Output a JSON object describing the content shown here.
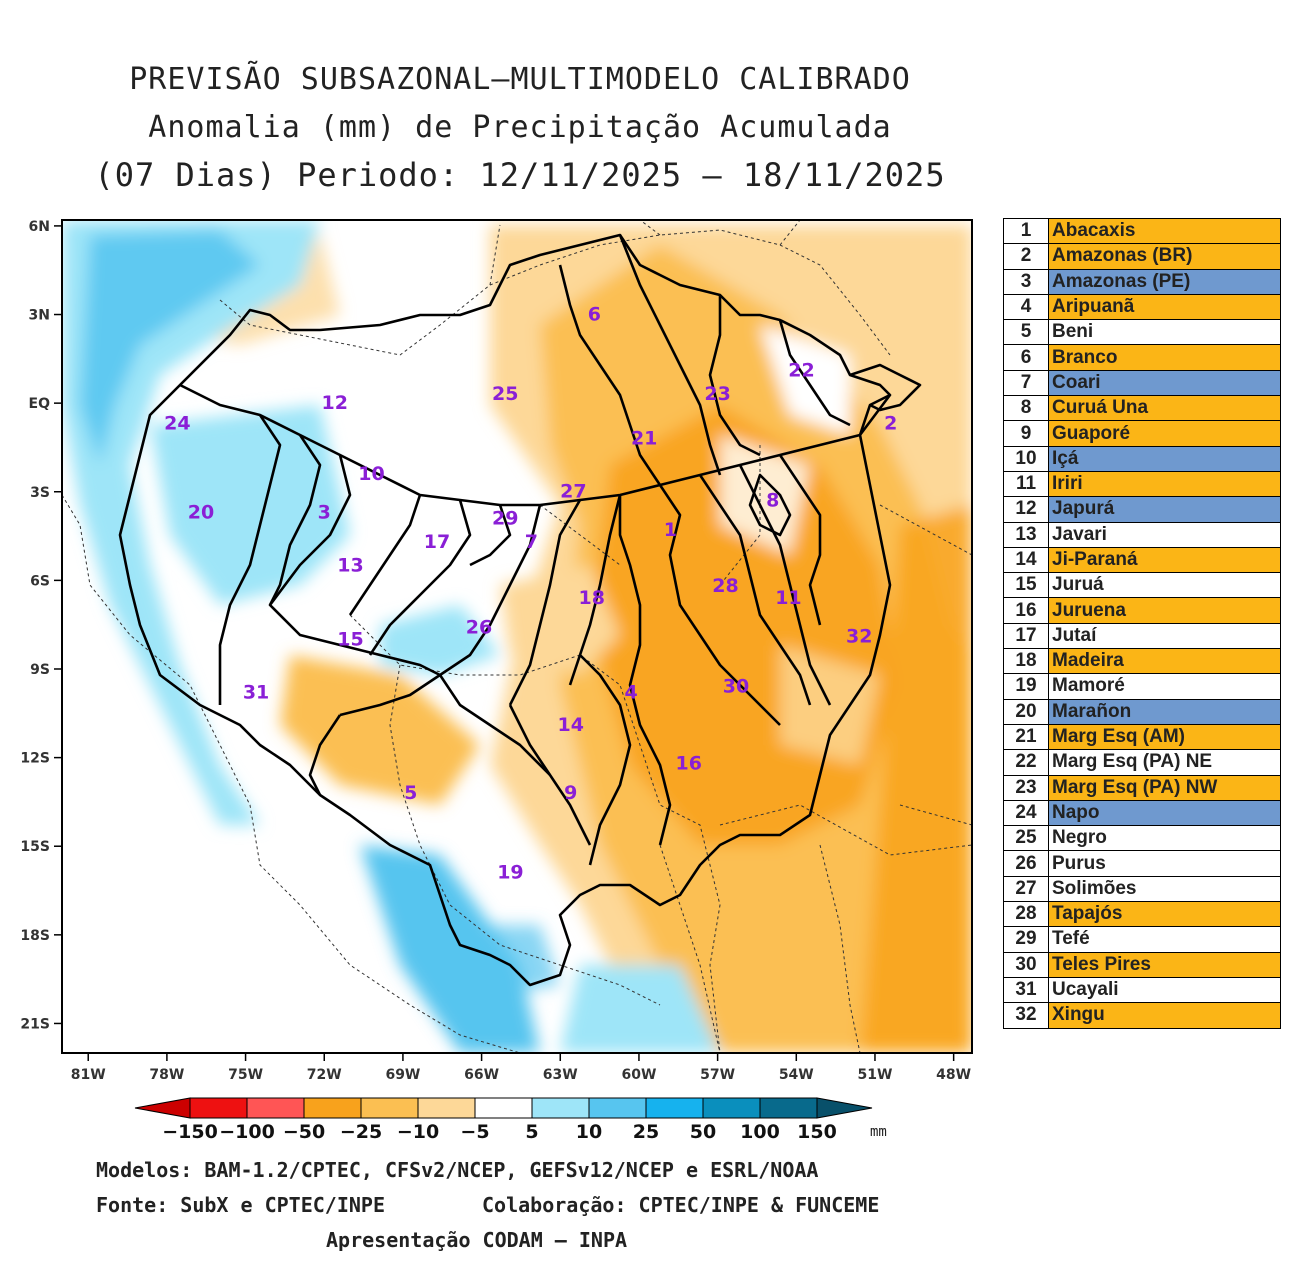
{
  "title": {
    "line1": "PREVISÃO SUBSAZONAL—MULTIMODELO CALIBRADO",
    "line2": "Anomalia (mm) de Precipitação Acumulada",
    "line3": "(07 Dias) Periodo: 12/11/2025 — 18/11/2025"
  },
  "map": {
    "lat_labels": [
      "6N",
      "3N",
      "EQ",
      "3S",
      "6S",
      "9S",
      "12S",
      "15S",
      "18S",
      "21S"
    ],
    "lon_labels": [
      "81W",
      "78W",
      "75W",
      "72W",
      "69W",
      "66W",
      "63W",
      "60W",
      "57W",
      "54W",
      "51W",
      "48W"
    ],
    "lat_values": [
      6,
      3,
      0,
      -3,
      -6,
      -9,
      -12,
      -15,
      -18,
      -21
    ],
    "lon_values": [
      -81,
      -78,
      -75,
      -72,
      -69,
      -66,
      -63,
      -60,
      -57,
      -54,
      -51,
      -48
    ],
    "extent": {
      "lon_min": -82,
      "lon_max": -47.3,
      "lat_min": -22,
      "lat_max": 6.2
    },
    "basin_labels": [
      {
        "id": "1",
        "lon": -58.8,
        "lat": -4.5
      },
      {
        "id": "2",
        "lon": -50.4,
        "lat": -0.9
      },
      {
        "id": "3",
        "lon": -72.0,
        "lat": -3.9
      },
      {
        "id": "4",
        "lon": -60.3,
        "lat": -10.0
      },
      {
        "id": "5",
        "lon": -68.7,
        "lat": -13.4
      },
      {
        "id": "6",
        "lon": -61.7,
        "lat": 2.8
      },
      {
        "id": "7",
        "lon": -64.1,
        "lat": -4.9
      },
      {
        "id": "8",
        "lon": -54.9,
        "lat": -3.5
      },
      {
        "id": "9",
        "lon": -62.6,
        "lat": -13.4
      },
      {
        "id": "10",
        "lon": -70.2,
        "lat": -2.6
      },
      {
        "id": "11",
        "lon": -54.3,
        "lat": -6.8
      },
      {
        "id": "12",
        "lon": -71.6,
        "lat": -0.2
      },
      {
        "id": "13",
        "lon": -71.0,
        "lat": -5.7
      },
      {
        "id": "14",
        "lon": -62.6,
        "lat": -11.1
      },
      {
        "id": "15",
        "lon": -71.0,
        "lat": -8.2
      },
      {
        "id": "16",
        "lon": -58.1,
        "lat": -12.4
      },
      {
        "id": "17",
        "lon": -67.7,
        "lat": -4.9
      },
      {
        "id": "18",
        "lon": -61.8,
        "lat": -6.8
      },
      {
        "id": "19",
        "lon": -64.9,
        "lat": -16.1
      },
      {
        "id": "20",
        "lon": -76.7,
        "lat": -3.9
      },
      {
        "id": "21",
        "lon": -59.8,
        "lat": -1.4
      },
      {
        "id": "22",
        "lon": -53.8,
        "lat": 0.9
      },
      {
        "id": "23",
        "lon": -57.0,
        "lat": 0.1
      },
      {
        "id": "24",
        "lon": -77.6,
        "lat": -0.9
      },
      {
        "id": "25",
        "lon": -65.1,
        "lat": 0.1
      },
      {
        "id": "26",
        "lon": -66.1,
        "lat": -7.8
      },
      {
        "id": "27",
        "lon": -62.5,
        "lat": -3.2
      },
      {
        "id": "28",
        "lon": -56.7,
        "lat": -6.4
      },
      {
        "id": "29",
        "lon": -65.1,
        "lat": -4.1
      },
      {
        "id": "30",
        "lon": -56.3,
        "lat": -9.8
      },
      {
        "id": "31",
        "lon": -74.6,
        "lat": -10.0
      },
      {
        "id": "32",
        "lon": -51.6,
        "lat": -8.1
      }
    ]
  },
  "legend": [
    {
      "num": "1",
      "name": "Abacaxis",
      "color": "#fbb516"
    },
    {
      "num": "2",
      "name": "Amazonas (BR)",
      "color": "#fbb516"
    },
    {
      "num": "3",
      "name": "Amazonas (PE)",
      "color": "#6f99cf"
    },
    {
      "num": "4",
      "name": "Aripuanã",
      "color": "#fbb516"
    },
    {
      "num": "5",
      "name": "Beni",
      "color": "#ffffff"
    },
    {
      "num": "6",
      "name": "Branco",
      "color": "#fbb516"
    },
    {
      "num": "7",
      "name": "Coari",
      "color": "#6f99cf"
    },
    {
      "num": "8",
      "name": "Curuá Una",
      "color": "#fbb516"
    },
    {
      "num": "9",
      "name": "Guaporé",
      "color": "#fbb516"
    },
    {
      "num": "10",
      "name": "Içá",
      "color": "#6f99cf"
    },
    {
      "num": "11",
      "name": "Iriri",
      "color": "#fbb516"
    },
    {
      "num": "12",
      "name": "Japurá",
      "color": "#6f99cf"
    },
    {
      "num": "13",
      "name": "Javari",
      "color": "#ffffff"
    },
    {
      "num": "14",
      "name": "Ji-Paraná",
      "color": "#fbb516"
    },
    {
      "num": "15",
      "name": "Juruá",
      "color": "#ffffff"
    },
    {
      "num": "16",
      "name": "Juruena",
      "color": "#fbb516"
    },
    {
      "num": "17",
      "name": "Jutaí",
      "color": "#ffffff"
    },
    {
      "num": "18",
      "name": "Madeira",
      "color": "#fbb516"
    },
    {
      "num": "19",
      "name": "Mamoré",
      "color": "#ffffff"
    },
    {
      "num": "20",
      "name": "Marañon",
      "color": "#6f99cf"
    },
    {
      "num": "21",
      "name": "Marg Esq (AM)",
      "color": "#fbb516"
    },
    {
      "num": "22",
      "name": "Marg Esq (PA) NE",
      "color": "#ffffff"
    },
    {
      "num": "23",
      "name": "Marg Esq (PA) NW",
      "color": "#fbb516"
    },
    {
      "num": "24",
      "name": "Napo",
      "color": "#6f99cf"
    },
    {
      "num": "25",
      "name": "Negro",
      "color": "#ffffff"
    },
    {
      "num": "26",
      "name": "Purus",
      "color": "#ffffff"
    },
    {
      "num": "27",
      "name": "Solimões",
      "color": "#ffffff"
    },
    {
      "num": "28",
      "name": "Tapajós",
      "color": "#fbb516"
    },
    {
      "num": "29",
      "name": "Tefé",
      "color": "#ffffff"
    },
    {
      "num": "30",
      "name": "Teles Pires",
      "color": "#fbb516"
    },
    {
      "num": "31",
      "name": "Ucayali",
      "color": "#ffffff"
    },
    {
      "num": "32",
      "name": "Xingu",
      "color": "#fbb516"
    }
  ],
  "colorbar": {
    "labels": [
      "-150",
      "-100",
      "-50",
      "-25",
      "-10",
      "-5",
      "5",
      "10",
      "25",
      "50",
      "100",
      "150"
    ],
    "colors": [
      "#cc0000",
      "#ee1111",
      "#ff5555",
      "#f8a21c",
      "#fbbf52",
      "#fdd898",
      "#ffffff",
      "#9ee5f8",
      "#57c5ef",
      "#16b2ee",
      "#0a8fbd",
      "#086a8c",
      "#08506a"
    ],
    "unit": "mm"
  },
  "footer": {
    "models": "Modelos: BAM-1.2/CPTEC, CFSv2/NCEP, GEFSv12/NCEP e ESRL/NOAA",
    "source": "Fonte: SubX e CPTEC/INPE",
    "collab": "Colaboração: CPTEC/INPE & FUNCEME",
    "presentation": "Apresentação CODAM — INPA"
  }
}
